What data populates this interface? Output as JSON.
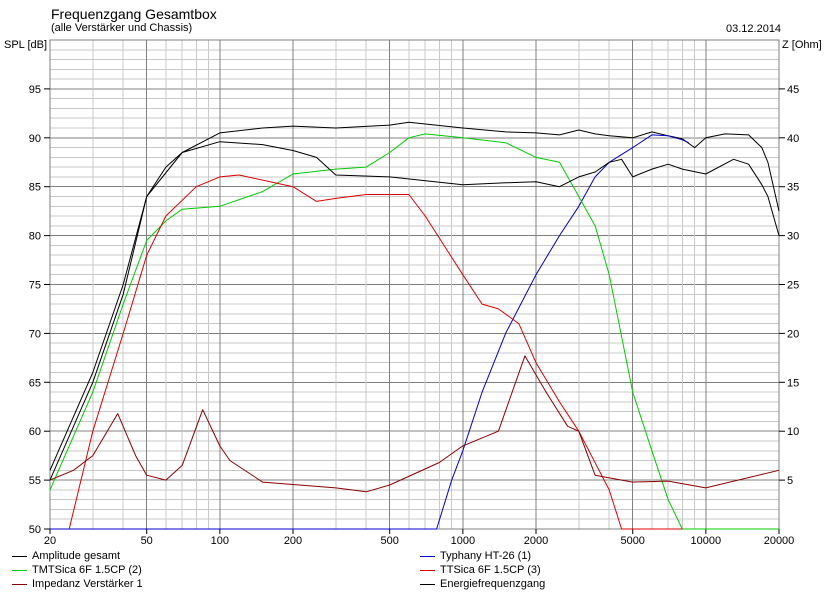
{
  "chart_data": {
    "type": "line",
    "title": "Frequenzgang Gesamtbox",
    "subtitle": "(alle Verstärker und Chassis)",
    "date": "03.12.2014",
    "ylabel": "SPL [dB]",
    "y2label": "Z [Ohm]",
    "xscale": "log",
    "xlim": [
      20,
      20000
    ],
    "ylim": [
      50,
      100
    ],
    "y2lim": [
      0,
      50
    ],
    "grid": true,
    "legend_position": "bottom",
    "xticks": [
      20,
      50,
      100,
      200,
      500,
      1000,
      2000,
      5000,
      10000,
      20000
    ],
    "yticks": [
      50,
      55,
      60,
      65,
      70,
      75,
      80,
      85,
      90,
      95
    ],
    "y2ticks": [
      5,
      10,
      15,
      20,
      25,
      30,
      35,
      40,
      45
    ],
    "series": [
      {
        "name": "Amplitude gesamt",
        "color": "#000000",
        "axis": "left",
        "x": [
          20,
          30,
          40,
          50,
          60,
          70,
          100,
          150,
          200,
          300,
          500,
          600,
          1000,
          1500,
          2000,
          2500,
          3000,
          3500,
          4000,
          5000,
          6000,
          7000,
          8000,
          9000,
          10000,
          12000,
          15000,
          17000,
          18000,
          20000
        ],
        "y": [
          56,
          66,
          75,
          84,
          87,
          88.5,
          90.5,
          91,
          91.2,
          91,
          91.3,
          91.6,
          91,
          90.6,
          90.5,
          90.3,
          90.8,
          90.4,
          90.2,
          90,
          90.6,
          90.2,
          89.9,
          89,
          90,
          90.4,
          90.3,
          89,
          87.5,
          82.5
        ]
      },
      {
        "name": "Typhany HT-26 (1)",
        "color": "#0000cc",
        "axis": "left",
        "x": [
          20,
          780,
          900,
          1000,
          1200,
          1500,
          2000,
          2500,
          3000,
          3500,
          4000,
          5000,
          6000,
          7000,
          8000,
          8500
        ],
        "y": [
          50,
          50,
          55,
          58,
          64,
          70,
          76,
          80,
          83,
          86,
          87.5,
          89,
          90.3,
          90.2,
          89.8,
          89.5
        ]
      },
      {
        "name": "TMTSica 6F 1.5CP (2)",
        "color": "#00cc00",
        "axis": "left",
        "x": [
          20,
          30,
          40,
          50,
          60,
          70,
          100,
          150,
          200,
          300,
          400,
          500,
          600,
          700,
          1000,
          1500,
          2000,
          2500,
          3000,
          3500,
          4000,
          5000,
          6000,
          7000,
          8000,
          20000
        ],
        "y": [
          54,
          64,
          73,
          79.5,
          81.5,
          82.7,
          83,
          84.5,
          86.3,
          86.8,
          87,
          88.5,
          90,
          90.4,
          90,
          89.5,
          88,
          87.5,
          84,
          81,
          76,
          64,
          58,
          53,
          50,
          50
        ]
      },
      {
        "name": "TTSica 6F 1.5CP (3)",
        "color": "#dd0000",
        "axis": "left",
        "x": [
          24,
          30,
          40,
          50,
          60,
          80,
          100,
          120,
          200,
          250,
          300,
          400,
          600,
          700,
          1000,
          1200,
          1400,
          1700,
          2000,
          2500,
          3000,
          4000,
          4500,
          8000
        ],
        "y": [
          50,
          60,
          70,
          78,
          82,
          85,
          86,
          86.2,
          85,
          83.5,
          83.8,
          84.2,
          84.2,
          82,
          76,
          73,
          72.5,
          71,
          67,
          63,
          60,
          54,
          50,
          50
        ]
      },
      {
        "name": "Impedanz Verstärker 1",
        "color": "#8b0000",
        "axis": "right",
        "x": [
          20,
          25,
          30,
          38,
          45,
          50,
          60,
          70,
          85,
          100,
          110,
          150,
          300,
          400,
          500,
          800,
          1000,
          1400,
          1800,
          2200,
          2700,
          3000,
          3500,
          5000,
          7000,
          10000,
          20000
        ],
        "y": [
          5,
          6,
          7.5,
          11.8,
          7.5,
          5.5,
          5,
          6.5,
          12.2,
          8.5,
          7,
          4.8,
          4.2,
          3.8,
          4.5,
          6.8,
          8.5,
          10,
          17.7,
          14,
          10.5,
          10,
          5.5,
          4.8,
          4.9,
          4.2,
          6
        ]
      },
      {
        "name": "Energiefrequenzgang",
        "color": "#000000",
        "axis": "left",
        "x": [
          20,
          30,
          40,
          50,
          70,
          100,
          150,
          200,
          250,
          300,
          500,
          1000,
          1500,
          2000,
          2500,
          3000,
          3500,
          4000,
          4500,
          5000,
          6000,
          7000,
          8000,
          10000,
          13000,
          15000,
          17000,
          18000,
          20000
        ],
        "y": [
          55,
          65,
          74,
          84,
          88.5,
          89.6,
          89.3,
          88.7,
          88,
          86.2,
          86,
          85.2,
          85.4,
          85.5,
          85,
          86,
          86.5,
          87.5,
          87.8,
          86,
          86.8,
          87.3,
          86.8,
          86.3,
          87.8,
          87.3,
          85.2,
          84,
          80
        ]
      }
    ]
  }
}
